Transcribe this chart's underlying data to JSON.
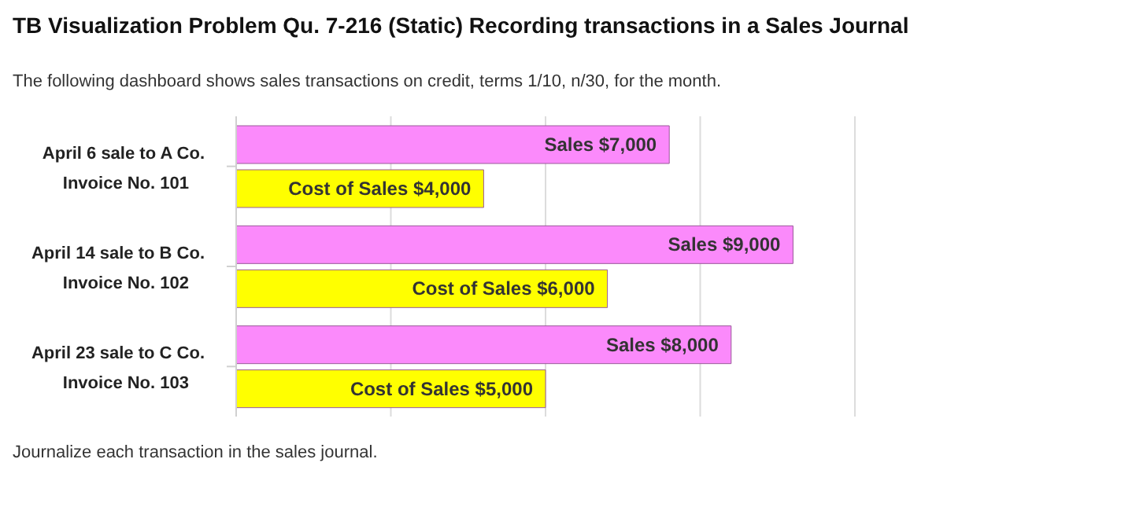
{
  "chart_data": {
    "type": "bar",
    "orientation": "horizontal",
    "title": "TB Visualization Problem Qu. 7-216 (Static) Recording transactions in a Sales Journal",
    "subtitle": "The following dashboard shows sales transactions on credit, terms 1/10, n/30, for the month.",
    "annotations": [
      "Journalize each transaction in the sales journal."
    ],
    "categories": [
      "April 6 sale to A Co.\nInvoice No. 101",
      "April 14 sale to B Co.\nInvoice No. 102",
      "April 23 sale to C Co.\nInvoice No. 103"
    ],
    "series": [
      {
        "color": "#fb8afb",
        "values": [
          7000,
          9000,
          8000
        ],
        "value_labels": [
          "Sales $7,000",
          "Sales $9,000",
          "Sales $8,000"
        ]
      },
      {
        "color": "#ffff00",
        "values": [
          4000,
          6000,
          5000
        ],
        "value_labels": [
          "Cost of Sales $4,000",
          "Cost of Sales $6,000",
          "Cost of Sales $5,000"
        ]
      }
    ],
    "tick_labels": "y",
    "grid": "x",
    "legend": false
  }
}
